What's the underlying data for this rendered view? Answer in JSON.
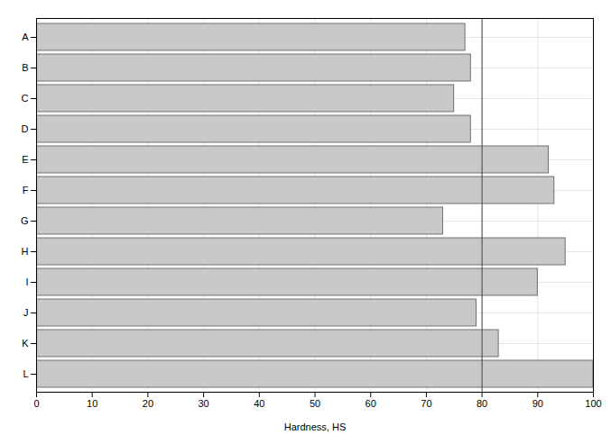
{
  "chart_data": {
    "type": "bar",
    "orientation": "horizontal",
    "categories": [
      "A",
      "B",
      "C",
      "D",
      "E",
      "F",
      "G",
      "H",
      "I",
      "J",
      "K",
      "L"
    ],
    "values": [
      77,
      78,
      75,
      78,
      92,
      93,
      73,
      95,
      90,
      79,
      83,
      100
    ],
    "color": "#c8c8c8",
    "xlabel": "Hardness, HS",
    "xlim": [
      0,
      100
    ],
    "xticks": [
      0,
      10,
      20,
      30,
      40,
      50,
      60,
      70,
      80,
      90,
      100
    ],
    "reference_x": 80,
    "grid": true
  }
}
